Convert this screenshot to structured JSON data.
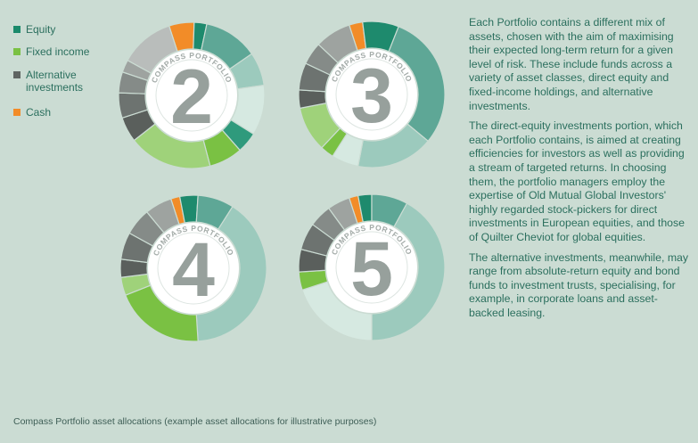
{
  "legend": {
    "items": [
      {
        "label": "Equity",
        "color": "#1a8a6b"
      },
      {
        "label": "Fixed income",
        "color": "#7ac143"
      },
      {
        "label": "Alternative investments",
        "color": "#5f6562"
      },
      {
        "label": "Cash",
        "color": "#f28c28"
      }
    ]
  },
  "paragraphs": [
    "Each Portfolio contains a different mix of assets, chosen with the aim of maximising their expected long-term return for a given level of risk. These include funds across a variety of asset classes, direct equity and fixed-income holdings, and alternative investments.",
    "The direct-equity investments portion, which each Portfolio contains, is aimed at creating efficiencies for investors as well as providing a stream of targeted returns. In choosing them, the portfolio managers employ the expertise of Old Mutual Global Investors' highly regarded stock-pickers for direct investments in European equities, and those of Quilter Cheviot for global equities.",
    "The alternative investments, meanwhile, may range from absolute-return equity and bond funds to investment trusts, specialising, for example, in corporate loans and asset-backed leasing."
  ],
  "caption": "Compass Portfolio asset allocations (example asset allocations for illustrative purposes)",
  "chart_data": [
    {
      "type": "pie",
      "title": "COMPASS PORTFOLIO",
      "label": "2",
      "segments": [
        {
          "category": "Cash",
          "value": 6
        },
        {
          "category": "Equity",
          "value": 3
        },
        {
          "category": "Equity",
          "value": 13
        },
        {
          "category": "Equity",
          "value": 8
        },
        {
          "category": "Equity",
          "value": 12
        },
        {
          "category": "Equity",
          "value": 5
        },
        {
          "category": "Fixed income",
          "value": 8
        },
        {
          "category": "Fixed income",
          "value": 20
        },
        {
          "category": "Alternative investments",
          "value": 6
        },
        {
          "category": "Alternative investments",
          "value": 6
        },
        {
          "category": "Alternative investments",
          "value": 5
        },
        {
          "category": "Alternative investments",
          "value": 3
        },
        {
          "category": "Alternative investments",
          "value": 13
        }
      ]
    },
    {
      "type": "pie",
      "title": "COMPASS PORTFOLIO",
      "label": "3",
      "segments": [
        {
          "category": "Cash",
          "value": 3
        },
        {
          "category": "Equity",
          "value": 8
        },
        {
          "category": "Equity",
          "value": 30
        },
        {
          "category": "Equity",
          "value": 17
        },
        {
          "category": "Equity",
          "value": 6
        },
        {
          "category": "Fixed income",
          "value": 3
        },
        {
          "category": "Fixed income",
          "value": 10
        },
        {
          "category": "Alternative investments",
          "value": 4
        },
        {
          "category": "Alternative investments",
          "value": 6
        },
        {
          "category": "Alternative investments",
          "value": 5
        },
        {
          "category": "Alternative investments",
          "value": 8
        }
      ]
    },
    {
      "type": "pie",
      "title": "COMPASS PORTFOLIO",
      "label": "4",
      "segments": [
        {
          "category": "Cash",
          "value": 2
        },
        {
          "category": "Equity",
          "value": 4
        },
        {
          "category": "Equity",
          "value": 8
        },
        {
          "category": "Equity",
          "value": 40
        },
        {
          "category": "Fixed income",
          "value": 20
        },
        {
          "category": "Fixed income",
          "value": 4
        },
        {
          "category": "Alternative investments",
          "value": 4
        },
        {
          "category": "Alternative investments",
          "value": 6
        },
        {
          "category": "Alternative investments",
          "value": 6
        },
        {
          "category": "Alternative investments",
          "value": 6
        }
      ]
    },
    {
      "type": "pie",
      "title": "COMPASS PORTFOLIO",
      "label": "5",
      "segments": [
        {
          "category": "Cash",
          "value": 2
        },
        {
          "category": "Equity",
          "value": 3
        },
        {
          "category": "Equity",
          "value": 8
        },
        {
          "category": "Equity",
          "value": 42
        },
        {
          "category": "Equity",
          "value": 20
        },
        {
          "category": "Fixed income",
          "value": 4
        },
        {
          "category": "Alternative investments",
          "value": 5
        },
        {
          "category": "Alternative investments",
          "value": 6
        },
        {
          "category": "Alternative investments",
          "value": 5
        },
        {
          "category": "Alternative investments",
          "value": 5
        }
      ]
    }
  ]
}
